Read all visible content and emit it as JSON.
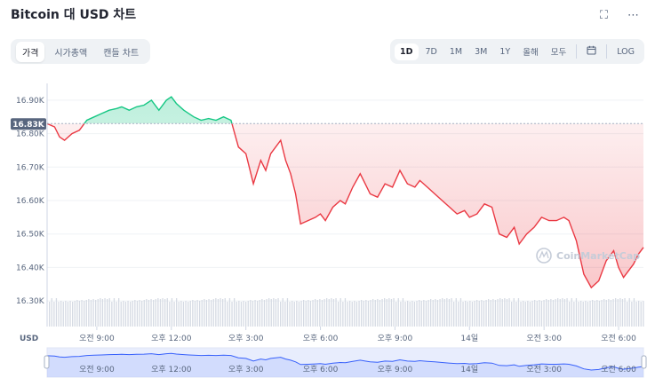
{
  "title": "Bitcoin 대 USD 차트",
  "icons": {
    "fullscreen": "fullscreen-icon",
    "more": "more-icon",
    "calendar": "calendar-icon",
    "watermark": "coinmarketcap-logo-icon"
  },
  "tabs": [
    {
      "label": "가격",
      "active": true
    },
    {
      "label": "시가총액",
      "active": false
    },
    {
      "label": "캔들 차트",
      "active": false
    }
  ],
  "ranges": [
    {
      "label": "1D",
      "active": true
    },
    {
      "label": "7D",
      "active": false
    },
    {
      "label": "1M",
      "active": false
    },
    {
      "label": "3M",
      "active": false
    },
    {
      "label": "1Y",
      "active": false
    },
    {
      "label": "올해",
      "active": false
    },
    {
      "label": "모두",
      "active": false
    }
  ],
  "log_label": "LOG",
  "currency_label": "USD",
  "watermark": "CoinMarketCap",
  "current_price_label": "16.83K",
  "colors": {
    "up": "#16c784",
    "down": "#ea3943",
    "baseline": "#58667e",
    "navigator": "#3861fb"
  },
  "chart_data": {
    "type": "area",
    "title": "Bitcoin 대 USD 차트",
    "xlabel": "",
    "ylabel": "USD",
    "ylim": [
      16250,
      16950
    ],
    "yticks": [
      16300,
      16400,
      16500,
      16600,
      16700,
      16800,
      16900
    ],
    "ytick_labels": [
      "16.30K",
      "16.40K",
      "16.50K",
      "16.60K",
      "16.70K",
      "16.80K",
      "16.90K"
    ],
    "xlim": [
      7.0,
      31.0
    ],
    "xticks": [
      9,
      12,
      15,
      18,
      21,
      24,
      27,
      30
    ],
    "xtick_labels": [
      "오전 9:00",
      "오후 12:00",
      "오후 3:00",
      "오후 6:00",
      "오후 9:00",
      "14일",
      "오전 3:00",
      "오전 6:00"
    ],
    "baseline": 16830,
    "series": [
      {
        "x": [
          7.0,
          7.3,
          7.5,
          7.7,
          8.0,
          8.3,
          8.6,
          8.9,
          9.2,
          9.5,
          9.8,
          10.0,
          10.3,
          10.6,
          10.9,
          11.2,
          11.5,
          11.8,
          12.0,
          12.2,
          12.5,
          12.7,
          12.9,
          13.2,
          13.5,
          13.8,
          14.1,
          14.4,
          14.7,
          15.0,
          15.3,
          15.6,
          15.8,
          16.0,
          16.2,
          16.4,
          16.6,
          16.8,
          17.0,
          17.2,
          17.5,
          17.8,
          18.0,
          18.2,
          18.5,
          18.8,
          19.0,
          19.3,
          19.6,
          19.8,
          20.0,
          20.3,
          20.6,
          20.9,
          21.2,
          21.5,
          21.8,
          22.0,
          22.3,
          22.6,
          22.9,
          23.2,
          23.5,
          23.8,
          24.0,
          24.3,
          24.6,
          24.9,
          25.2,
          25.5,
          25.8,
          26.0,
          26.3,
          26.6,
          26.9,
          27.2,
          27.5,
          27.8,
          28.0,
          28.3,
          28.6,
          28.9,
          29.2,
          29.5,
          29.8,
          30.0,
          30.2,
          30.4,
          30.6,
          30.8,
          31.0
        ],
        "values": [
          16830,
          16820,
          16790,
          16780,
          16800,
          16810,
          16840,
          16850,
          16860,
          16870,
          16875,
          16880,
          16870,
          16880,
          16885,
          16900,
          16870,
          16900,
          16910,
          16890,
          16870,
          16860,
          16850,
          16840,
          16845,
          16840,
          16850,
          16840,
          16760,
          16740,
          16650,
          16720,
          16690,
          16740,
          16760,
          16780,
          16720,
          16680,
          16620,
          16530,
          16540,
          16550,
          16560,
          16540,
          16580,
          16600,
          16590,
          16640,
          16680,
          16650,
          16620,
          16610,
          16650,
          16640,
          16690,
          16650,
          16640,
          16660,
          16640,
          16620,
          16600,
          16580,
          16560,
          16570,
          16550,
          16560,
          16590,
          16580,
          16500,
          16490,
          16520,
          16470,
          16500,
          16520,
          16550,
          16540,
          16540,
          16550,
          16540,
          16480,
          16380,
          16340,
          16360,
          16420,
          16450,
          16400,
          16370,
          16390,
          16410,
          16440,
          16460
        ]
      }
    ]
  }
}
